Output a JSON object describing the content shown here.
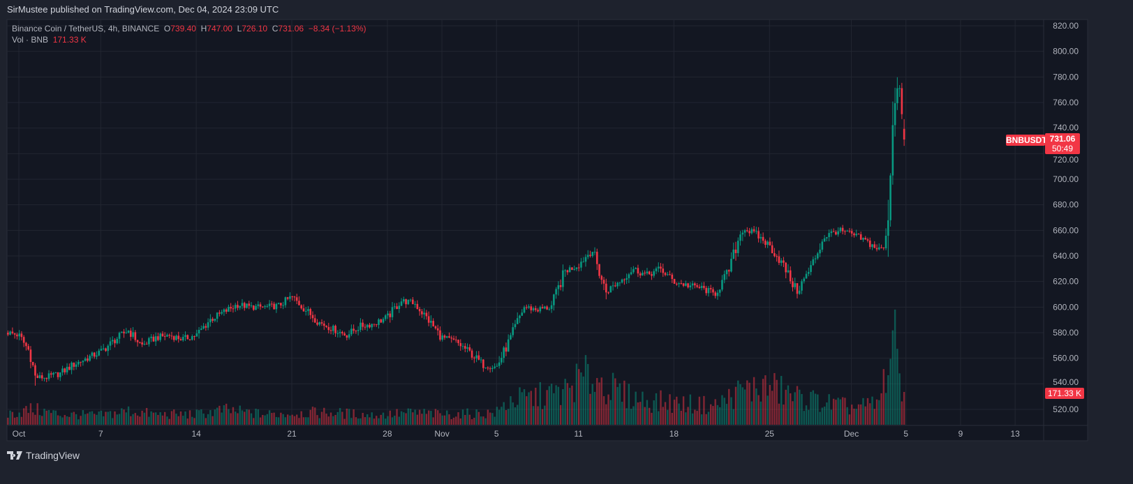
{
  "publisher_line": "SirMustee published on TradingView.com, Dec 04, 2024 23:09 UTC",
  "legend": {
    "symbol": "Binance Coin / TetherUS, 4h, BINANCE",
    "o_label": "O",
    "o": "739.40",
    "h_label": "H",
    "h": "747.00",
    "l_label": "L",
    "l": "726.10",
    "c_label": "C",
    "c": "731.06",
    "change": "−8.34 (−1.13%)",
    "vol_label": "Vol · BNB",
    "vol": "171.33 K"
  },
  "price_tag": {
    "symbol": "BNBUSDT",
    "price": "731.06",
    "countdown": "50:49"
  },
  "volume_tag": "171.33 K",
  "footer": {
    "brand": "TradingView"
  },
  "colors": {
    "up": "#089981",
    "down": "#f23645",
    "background": "#131722",
    "grid": "#222631"
  },
  "chart_data": {
    "type": "candlestick",
    "symbol": "BNBUSDT",
    "interval": "4h",
    "ylim": [
      510,
      830
    ],
    "y_ticks": [
      "820.00",
      "800.00",
      "780.00",
      "760.00",
      "740.00",
      "720.00",
      "700.00",
      "680.00",
      "660.00",
      "640.00",
      "620.00",
      "600.00",
      "580.00",
      "560.00",
      "540.00",
      "520.00"
    ],
    "x_ticks": [
      {
        "label": "Oct",
        "day": 0
      },
      {
        "label": "7",
        "day": 6
      },
      {
        "label": "14",
        "day": 13
      },
      {
        "label": "21",
        "day": 20
      },
      {
        "label": "28",
        "day": 27
      },
      {
        "label": "Nov",
        "day": 31
      },
      {
        "label": "5",
        "day": 35
      },
      {
        "label": "11",
        "day": 41
      },
      {
        "label": "18",
        "day": 48
      },
      {
        "label": "25",
        "day": 55
      },
      {
        "label": "Dec",
        "day": 61
      },
      {
        "label": "5",
        "day": 65
      },
      {
        "label": "9",
        "day": 69
      },
      {
        "label": "13",
        "day": 73
      }
    ],
    "approx_close_waypoints_day_price": [
      [
        -0.8,
        580
      ],
      [
        0,
        578
      ],
      [
        0.8,
        565
      ],
      [
        1.2,
        545
      ],
      [
        2,
        545
      ],
      [
        3,
        548
      ],
      [
        4,
        555
      ],
      [
        5,
        560
      ],
      [
        6,
        565
      ],
      [
        7,
        574
      ],
      [
        8,
        582
      ],
      [
        9,
        570
      ],
      [
        10,
        576
      ],
      [
        11,
        578
      ],
      [
        12,
        575
      ],
      [
        13,
        578
      ],
      [
        14,
        590
      ],
      [
        15,
        596
      ],
      [
        16,
        602
      ],
      [
        17,
        600
      ],
      [
        18,
        600
      ],
      [
        19,
        601
      ],
      [
        20,
        608
      ],
      [
        21,
        598
      ],
      [
        22,
        588
      ],
      [
        23,
        583
      ],
      [
        24,
        578
      ],
      [
        25,
        585
      ],
      [
        26,
        587
      ],
      [
        27,
        592
      ],
      [
        28,
        605
      ],
      [
        29,
        603
      ],
      [
        30,
        590
      ],
      [
        31,
        576
      ],
      [
        32,
        573
      ],
      [
        33,
        565
      ],
      [
        34,
        555
      ],
      [
        35,
        553
      ],
      [
        36,
        575
      ],
      [
        37,
        600
      ],
      [
        38,
        598
      ],
      [
        39,
        600
      ],
      [
        40,
        628
      ],
      [
        41,
        633
      ],
      [
        42,
        645
      ],
      [
        43,
        612
      ],
      [
        44,
        620
      ],
      [
        45,
        630
      ],
      [
        46,
        625
      ],
      [
        47,
        630
      ],
      [
        48,
        620
      ],
      [
        49,
        617
      ],
      [
        50,
        615
      ],
      [
        51,
        610
      ],
      [
        52,
        628
      ],
      [
        53,
        662
      ],
      [
        54,
        657
      ],
      [
        55,
        648
      ],
      [
        56,
        633
      ],
      [
        57,
        612
      ],
      [
        58,
        630
      ],
      [
        59,
        655
      ],
      [
        60,
        660
      ],
      [
        61,
        657
      ],
      [
        62,
        652
      ],
      [
        63,
        645
      ],
      [
        63.5,
        647
      ],
      [
        63.8,
        695
      ],
      [
        64.1,
        760
      ],
      [
        64.4,
        778
      ],
      [
        64.6,
        765
      ],
      [
        64.83,
        731.06
      ]
    ],
    "approx_volume_waypoints_day_k": [
      [
        -0.8,
        60
      ],
      [
        1,
        90
      ],
      [
        3,
        60
      ],
      [
        6,
        55
      ],
      [
        8,
        80
      ],
      [
        10,
        60
      ],
      [
        13,
        60
      ],
      [
        15,
        85
      ],
      [
        18,
        60
      ],
      [
        21,
        70
      ],
      [
        23,
        70
      ],
      [
        26,
        55
      ],
      [
        29,
        70
      ],
      [
        31,
        60
      ],
      [
        34,
        65
      ],
      [
        35,
        70
      ],
      [
        36,
        140
      ],
      [
        37,
        150
      ],
      [
        40,
        190
      ],
      [
        41,
        260
      ],
      [
        42,
        280
      ],
      [
        44,
        180
      ],
      [
        46,
        140
      ],
      [
        49,
        120
      ],
      [
        51,
        110
      ],
      [
        53,
        200
      ],
      [
        55,
        220
      ],
      [
        57,
        160
      ],
      [
        59,
        130
      ],
      [
        61,
        100
      ],
      [
        63,
        120
      ],
      [
        63.8,
        400
      ],
      [
        64.3,
        460
      ],
      [
        64.83,
        171.33
      ]
    ],
    "last_candle": {
      "open": 739.4,
      "high": 747.0,
      "low": 726.1,
      "close": 731.06,
      "volume_k": 171.33
    }
  }
}
